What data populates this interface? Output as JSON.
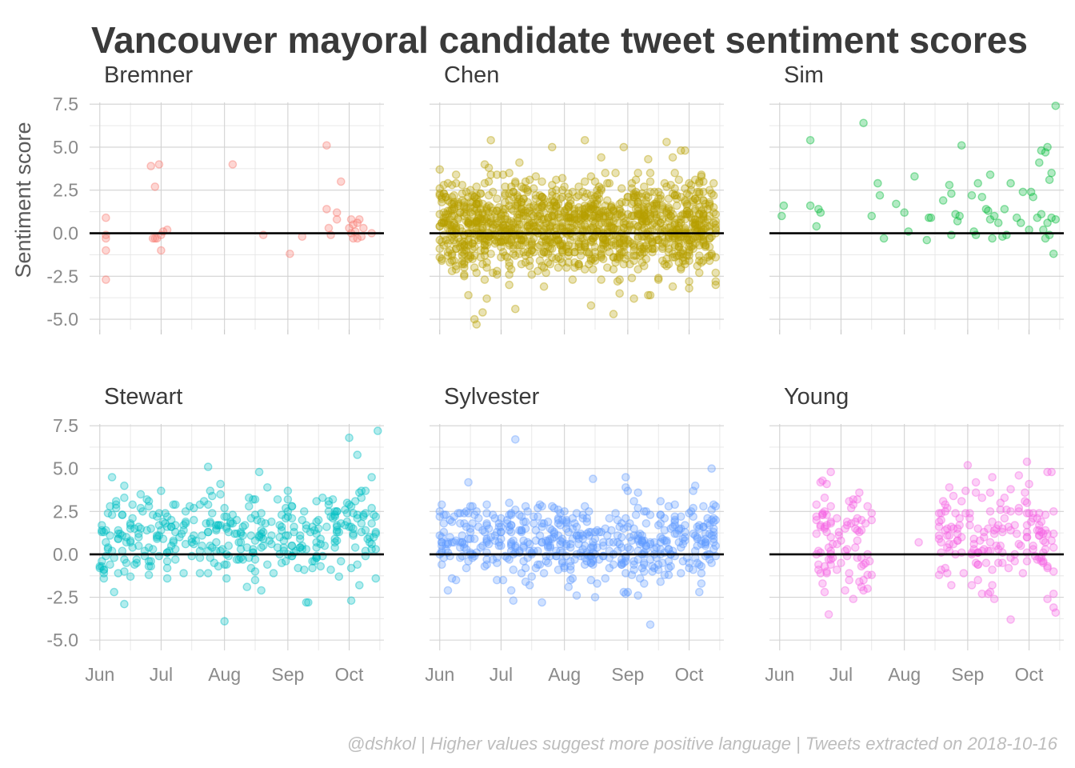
{
  "chart_data": {
    "type": "scatter",
    "title": "Vancouver mayoral candidate tweet sentiment scores",
    "ylabel": "Sentiment score",
    "caption": "@dshkol | Higher values suggest more positive language | Tweets extracted on 2018-10-16",
    "x_ticks": [
      "Jun",
      "Jul",
      "Aug",
      "Sep",
      "Oct"
    ],
    "x_tick_dates": [
      "2018-06-01",
      "2018-07-01",
      "2018-08-01",
      "2018-09-01",
      "2018-10-01"
    ],
    "xlim": [
      "2018-05-27",
      "2018-10-18"
    ],
    "y_ticks": [
      "7.5",
      "5.0",
      "2.5",
      "0.0",
      "-2.5",
      "-5.0"
    ],
    "ylim": [
      -5.6,
      7.6
    ],
    "reference_line_y": 0,
    "point_alpha": 0.3,
    "grid": true,
    "facets": [
      {
        "name": "Bremner",
        "color": "#F8766D",
        "points": [
          [
            "2018-06-04",
            0.9
          ],
          [
            "2018-06-04",
            -0.1
          ],
          [
            "2018-06-04",
            -0.3
          ],
          [
            "2018-06-04",
            -1.0
          ],
          [
            "2018-06-04",
            -2.7
          ],
          [
            "2018-06-26",
            3.9
          ],
          [
            "2018-06-27",
            -0.3
          ],
          [
            "2018-06-28",
            -0.3
          ],
          [
            "2018-06-28",
            2.7
          ],
          [
            "2018-06-29",
            -0.3
          ],
          [
            "2018-06-30",
            4.0
          ],
          [
            "2018-07-01",
            -1.0
          ],
          [
            "2018-07-01",
            -0.1
          ],
          [
            "2018-07-02",
            0.1
          ],
          [
            "2018-07-04",
            0.2
          ],
          [
            "2018-08-05",
            4.0
          ],
          [
            "2018-08-20",
            -0.1
          ],
          [
            "2018-09-02",
            -1.2
          ],
          [
            "2018-09-08",
            -0.2
          ],
          [
            "2018-09-20",
            5.1
          ],
          [
            "2018-09-20",
            1.4
          ],
          [
            "2018-09-21",
            0.3
          ],
          [
            "2018-09-22",
            -0.1
          ],
          [
            "2018-09-25",
            1.2
          ],
          [
            "2018-09-25",
            0.8
          ],
          [
            "2018-09-27",
            3.0
          ],
          [
            "2018-10-01",
            0.3
          ],
          [
            "2018-10-02",
            0.8
          ],
          [
            "2018-10-03",
            -0.3
          ],
          [
            "2018-10-03",
            0.5
          ],
          [
            "2018-10-04",
            0.1
          ],
          [
            "2018-10-05",
            -0.3
          ],
          [
            "2018-10-05",
            0.6
          ],
          [
            "2018-10-06",
            0.8
          ],
          [
            "2018-10-07",
            -0.2
          ],
          [
            "2018-10-08",
            0.3
          ],
          [
            "2018-10-12",
            0.0
          ],
          [
            "2018-10-02",
            0.0
          ]
        ]
      },
      {
        "name": "Chen",
        "color": "#B79F00",
        "generated": true,
        "n": 1300,
        "seed": 11,
        "start": "2018-06-01",
        "end": "2018-10-14",
        "spread": 1.35,
        "mean": 0.4,
        "extra_points": [
          [
            "2018-06-26",
            5.4
          ],
          [
            "2018-08-11",
            5.4
          ],
          [
            "2018-08-30",
            5.0
          ],
          [
            "2018-09-20",
            5.3
          ],
          [
            "2018-06-18",
            -5.0
          ],
          [
            "2018-06-19",
            -5.3
          ],
          [
            "2018-06-22",
            -4.6
          ],
          [
            "2018-07-08",
            -4.4
          ],
          [
            "2018-08-14",
            -4.2
          ],
          [
            "2018-09-04",
            -3.8
          ],
          [
            "2018-07-26",
            5.0
          ],
          [
            "2018-08-19",
            4.4
          ],
          [
            "2018-09-27",
            4.8
          ],
          [
            "2018-10-01",
            -3.2
          ]
        ]
      },
      {
        "name": "Sim",
        "color": "#00BA38",
        "points": [
          [
            "2018-06-02",
            1.0
          ],
          [
            "2018-06-03",
            1.6
          ],
          [
            "2018-06-16",
            5.4
          ],
          [
            "2018-06-16",
            1.6
          ],
          [
            "2018-06-19",
            0.4
          ],
          [
            "2018-06-20",
            1.4
          ],
          [
            "2018-06-21",
            1.2
          ],
          [
            "2018-07-12",
            6.4
          ],
          [
            "2018-07-16",
            1.0
          ],
          [
            "2018-07-19",
            2.9
          ],
          [
            "2018-07-20",
            2.2
          ],
          [
            "2018-07-22",
            -0.3
          ],
          [
            "2018-07-28",
            1.7
          ],
          [
            "2018-08-01",
            1.2
          ],
          [
            "2018-08-03",
            0.1
          ],
          [
            "2018-08-06",
            3.3
          ],
          [
            "2018-08-12",
            -0.4
          ],
          [
            "2018-08-13",
            0.9
          ],
          [
            "2018-08-14",
            0.9
          ],
          [
            "2018-08-20",
            1.9
          ],
          [
            "2018-08-23",
            2.8
          ],
          [
            "2018-08-24",
            2.3
          ],
          [
            "2018-08-24",
            -0.1
          ],
          [
            "2018-08-26",
            1.1
          ],
          [
            "2018-08-27",
            0.7
          ],
          [
            "2018-08-28",
            1.0
          ],
          [
            "2018-08-29",
            5.1
          ],
          [
            "2018-09-03",
            2.2
          ],
          [
            "2018-09-04",
            0.1
          ],
          [
            "2018-09-05",
            -0.1
          ],
          [
            "2018-09-06",
            2.9
          ],
          [
            "2018-09-08",
            2.1
          ],
          [
            "2018-09-10",
            1.4
          ],
          [
            "2018-09-11",
            1.3
          ],
          [
            "2018-09-12",
            3.4
          ],
          [
            "2018-09-12",
            0.8
          ],
          [
            "2018-09-13",
            -0.3
          ],
          [
            "2018-09-14",
            1.0
          ],
          [
            "2018-09-16",
            0.6
          ],
          [
            "2018-09-18",
            -0.2
          ],
          [
            "2018-09-20",
            -0.1
          ],
          [
            "2018-09-22",
            2.9
          ],
          [
            "2018-09-25",
            0.9
          ],
          [
            "2018-09-27",
            0.6
          ],
          [
            "2018-09-28",
            2.4
          ],
          [
            "2018-10-01",
            0.2
          ],
          [
            "2018-10-02",
            2.4
          ],
          [
            "2018-10-03",
            2.1
          ],
          [
            "2018-10-05",
            0.9
          ],
          [
            "2018-10-06",
            4.1
          ],
          [
            "2018-10-07",
            1.1
          ],
          [
            "2018-10-08",
            0.2
          ],
          [
            "2018-10-09",
            4.7
          ],
          [
            "2018-10-09",
            -0.3
          ],
          [
            "2018-10-10",
            5.0
          ],
          [
            "2018-10-10",
            0.6
          ],
          [
            "2018-10-11",
            3.1
          ],
          [
            "2018-10-11",
            -0.1
          ],
          [
            "2018-10-12",
            3.5
          ],
          [
            "2018-10-12",
            0.9
          ],
          [
            "2018-10-13",
            -1.2
          ],
          [
            "2018-10-14",
            7.4
          ],
          [
            "2018-10-14",
            0.8
          ],
          [
            "2018-10-07",
            4.8
          ],
          [
            "2018-09-19",
            1.4
          ]
        ]
      },
      {
        "name": "Stewart",
        "color": "#00BFC4",
        "generated": true,
        "n": 380,
        "seed": 23,
        "start": "2018-06-01",
        "end": "2018-10-14",
        "spread": 1.3,
        "mean": 1.0,
        "extra_points": [
          [
            "2018-10-01",
            6.8
          ],
          [
            "2018-10-05",
            5.8
          ],
          [
            "2018-10-15",
            7.2
          ],
          [
            "2018-07-24",
            5.1
          ],
          [
            "2018-08-01",
            -3.9
          ],
          [
            "2018-06-13",
            -2.9
          ],
          [
            "2018-06-08",
            -2.2
          ],
          [
            "2018-09-10",
            -2.8
          ],
          [
            "2018-10-14",
            -1.4
          ]
        ]
      },
      {
        "name": "Sylvester",
        "color": "#619CFF",
        "generated": true,
        "n": 520,
        "seed": 37,
        "start": "2018-06-01",
        "end": "2018-10-14",
        "spread": 1.2,
        "mean": 0.8,
        "extra_points": [
          [
            "2018-07-08",
            6.7
          ],
          [
            "2018-09-12",
            -4.1
          ],
          [
            "2018-06-05",
            -2.1
          ],
          [
            "2018-08-31",
            -2.3
          ],
          [
            "2018-09-01",
            -2.2
          ],
          [
            "2018-10-12",
            5.0
          ],
          [
            "2018-08-15",
            4.4
          ]
        ]
      },
      {
        "name": "Young",
        "color": "#F564E3",
        "generated": true,
        "n": 260,
        "seed": 53,
        "start": "2018-06-19",
        "end": "2018-10-14",
        "gap": [
          "2018-07-16",
          "2018-08-18"
        ],
        "spread": 1.6,
        "mean": 0.9,
        "extra_points": [
          [
            "2018-08-23",
            3.9
          ],
          [
            "2018-09-01",
            5.2
          ],
          [
            "2018-09-30",
            5.4
          ],
          [
            "2018-10-12",
            4.8
          ],
          [
            "2018-10-14",
            -3.4
          ],
          [
            "2018-10-13",
            -3.1
          ],
          [
            "2018-08-08",
            0.7
          ],
          [
            "2018-07-05",
            -1.1
          ],
          [
            "2018-06-22",
            2.3
          ],
          [
            "2018-07-05",
            3.1
          ]
        ]
      }
    ]
  }
}
